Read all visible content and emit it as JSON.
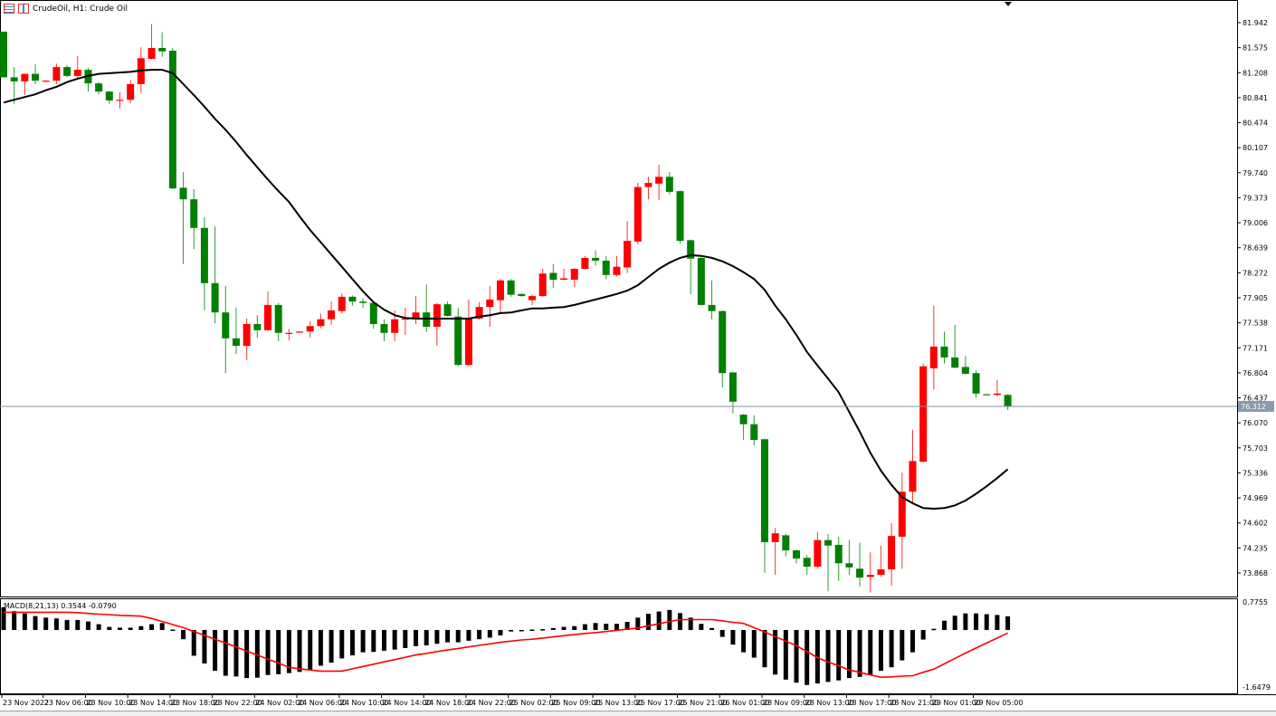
{
  "header": {
    "title": "CrudeOil, H1:  Crude Oil",
    "icons": [
      "chart-list-icon",
      "chart-window-icon"
    ]
  },
  "chart_data": [
    {
      "type": "candlestick",
      "symbol": "CrudeOil",
      "timeframe": "H1",
      "colors": {
        "up": "#ff0000",
        "down": "#008000",
        "ma": "#000000"
      },
      "ylim": [
        73.7,
        82.1
      ],
      "yticks": [
        "81.942",
        "81.575",
        "81.208",
        "80.841",
        "80.474",
        "80.107",
        "79.740",
        "79.373",
        "79.006",
        "78.639",
        "78.272",
        "77.905",
        "77.538",
        "77.171",
        "76.804",
        "76.437",
        "76.070",
        "75.703",
        "75.336",
        "74.969",
        "74.602",
        "74.235",
        "73.868"
      ],
      "current_price": "76.312",
      "xticks": [
        "23 Nov 2022",
        "23 Nov 06:00",
        "23 Nov 10:00",
        "23 Nov 14:00",
        "23 Nov 18:00",
        "23 Nov 22:00",
        "24 Nov 02:00",
        "24 Nov 06:00",
        "24 Nov 10:00",
        "24 Nov 14:00",
        "24 Nov 18:00",
        "24 Nov 22:00",
        "25 Nov 02:00",
        "25 Nov 09:00",
        "25 Nov 13:00",
        "25 Nov 17:00",
        "25 Nov 21:00",
        "26 Nov 01:00",
        "28 Nov 09:00",
        "28 Nov 13:00",
        "28 Nov 17:00",
        "28 Nov 21:00",
        "29 Nov 01:00",
        "29 Nov 05:00"
      ],
      "ohlc": [
        [
          81.81,
          81.81,
          81.14,
          81.14
        ],
        [
          81.14,
          81.29,
          80.75,
          81.08
        ],
        [
          81.08,
          81.19,
          80.88,
          81.19
        ],
        [
          81.19,
          81.33,
          81.04,
          81.09
        ],
        [
          81.09,
          81.1,
          81.08,
          81.09
        ],
        [
          81.09,
          81.34,
          81.04,
          81.29
        ],
        [
          81.29,
          81.32,
          81.14,
          81.16
        ],
        [
          81.16,
          81.45,
          81.12,
          81.25
        ],
        [
          81.25,
          81.28,
          80.93,
          81.05
        ],
        [
          81.05,
          81.07,
          80.89,
          80.93
        ],
        [
          80.93,
          80.94,
          80.75,
          80.8
        ],
        [
          80.8,
          80.92,
          80.68,
          80.81
        ],
        [
          80.81,
          81.1,
          80.76,
          81.04
        ],
        [
          81.04,
          81.58,
          80.91,
          81.42
        ],
        [
          81.41,
          81.92,
          81.4,
          81.57
        ],
        [
          81.57,
          81.8,
          81.44,
          81.52
        ],
        [
          81.53,
          81.57,
          79.5,
          79.51
        ],
        [
          79.52,
          79.75,
          78.4,
          79.35
        ],
        [
          79.35,
          79.5,
          78.62,
          78.93
        ],
        [
          78.93,
          79.09,
          77.72,
          78.12
        ],
        [
          78.12,
          78.95,
          77.53,
          77.69
        ],
        [
          77.69,
          78.08,
          76.8,
          77.31
        ],
        [
          77.31,
          77.76,
          77.08,
          77.2
        ],
        [
          77.2,
          77.6,
          76.99,
          77.52
        ],
        [
          77.52,
          77.65,
          77.32,
          77.43
        ],
        [
          77.43,
          78.0,
          77.42,
          77.8
        ],
        [
          77.8,
          77.83,
          77.27,
          77.39
        ],
        [
          77.38,
          77.45,
          77.28,
          77.39
        ],
        [
          77.4,
          77.41,
          77.39,
          77.41
        ],
        [
          77.41,
          77.56,
          77.32,
          77.49
        ],
        [
          77.49,
          77.67,
          77.46,
          77.59
        ],
        [
          77.59,
          77.85,
          77.51,
          77.72
        ],
        [
          77.71,
          77.97,
          77.68,
          77.92
        ],
        [
          77.92,
          77.94,
          77.79,
          77.85
        ],
        [
          77.85,
          77.9,
          77.76,
          77.83
        ],
        [
          77.83,
          77.86,
          77.45,
          77.52
        ],
        [
          77.52,
          77.59,
          77.27,
          77.39
        ],
        [
          77.39,
          77.72,
          77.27,
          77.59
        ],
        [
          77.59,
          77.76,
          77.36,
          77.6
        ],
        [
          77.6,
          77.93,
          77.52,
          77.69
        ],
        [
          77.69,
          78.1,
          77.4,
          77.48
        ],
        [
          77.48,
          77.83,
          77.2,
          77.81
        ],
        [
          77.81,
          77.85,
          77.63,
          77.64
        ],
        [
          77.63,
          77.76,
          76.9,
          76.92
        ],
        [
          76.92,
          77.88,
          76.9,
          77.6
        ],
        [
          77.6,
          77.84,
          77.58,
          77.77
        ],
        [
          77.77,
          78.08,
          77.48,
          77.88
        ],
        [
          77.87,
          78.18,
          77.67,
          78.16
        ],
        [
          78.16,
          78.18,
          77.92,
          77.95
        ],
        [
          77.96,
          77.97,
          77.92,
          77.93
        ],
        [
          77.87,
          77.95,
          77.8,
          77.93
        ],
        [
          77.93,
          78.33,
          77.92,
          78.26
        ],
        [
          78.27,
          78.4,
          78.05,
          78.17
        ],
        [
          78.17,
          78.33,
          78.16,
          78.19
        ],
        [
          78.17,
          78.34,
          78.06,
          78.33
        ],
        [
          78.33,
          78.52,
          78.32,
          78.49
        ],
        [
          78.49,
          78.6,
          78.38,
          78.45
        ],
        [
          78.45,
          78.52,
          78.18,
          78.24
        ],
        [
          78.24,
          78.52,
          78.22,
          78.36
        ],
        [
          78.35,
          79.03,
          78.27,
          78.74
        ],
        [
          78.73,
          79.59,
          78.69,
          79.53
        ],
        [
          79.53,
          79.68,
          79.35,
          79.59
        ],
        [
          79.58,
          79.86,
          79.34,
          79.68
        ],
        [
          79.68,
          79.75,
          79.42,
          79.46
        ],
        [
          79.47,
          79.48,
          78.7,
          78.74
        ],
        [
          78.75,
          78.76,
          77.96,
          78.48
        ],
        [
          78.49,
          78.5,
          77.79,
          77.8
        ],
        [
          77.8,
          78.16,
          77.59,
          77.71
        ],
        [
          77.71,
          77.72,
          76.59,
          76.8
        ],
        [
          76.81,
          76.82,
          76.21,
          76.38
        ],
        [
          76.19,
          76.2,
          75.82,
          76.05
        ],
        [
          76.05,
          76.18,
          75.74,
          75.82
        ],
        [
          75.83,
          75.84,
          73.87,
          74.32
        ],
        [
          74.32,
          74.53,
          73.84,
          74.45
        ],
        [
          74.42,
          74.44,
          74.11,
          74.2
        ],
        [
          74.2,
          74.21,
          74.01,
          74.08
        ],
        [
          74.09,
          74.13,
          73.84,
          73.96
        ],
        [
          73.96,
          74.47,
          73.93,
          74.35
        ],
        [
          74.35,
          74.44,
          73.6,
          74.27
        ],
        [
          74.28,
          74.4,
          73.75,
          74.01
        ],
        [
          74.01,
          74.35,
          73.84,
          73.95
        ],
        [
          73.93,
          74.31,
          73.67,
          73.8
        ],
        [
          73.81,
          74.17,
          73.58,
          73.84
        ],
        [
          73.84,
          74.27,
          73.81,
          73.92
        ],
        [
          73.92,
          74.6,
          73.68,
          74.41
        ],
        [
          74.4,
          75.34,
          73.93,
          75.06
        ],
        [
          75.06,
          75.97,
          74.9,
          75.51
        ],
        [
          75.5,
          76.94,
          75.49,
          76.9
        ],
        [
          76.87,
          77.79,
          76.56,
          77.19
        ],
        [
          77.19,
          77.41,
          76.94,
          77.03
        ],
        [
          77.03,
          77.51,
          76.87,
          76.88
        ],
        [
          76.89,
          77.05,
          76.78,
          76.79
        ],
        [
          76.8,
          76.84,
          76.44,
          76.5
        ],
        [
          76.49,
          76.5,
          76.48,
          76.48
        ],
        [
          76.48,
          76.7,
          76.46,
          76.5
        ],
        [
          76.48,
          76.49,
          76.26,
          76.312
        ]
      ],
      "moving_average": [
        80.77,
        80.81,
        80.85,
        80.89,
        80.95,
        81.0,
        81.07,
        81.12,
        81.16,
        81.19,
        81.2,
        81.21,
        81.22,
        81.24,
        81.25,
        81.25,
        81.2,
        81.04,
        80.88,
        80.71,
        80.53,
        80.37,
        80.19,
        80.0,
        79.82,
        79.64,
        79.47,
        79.31,
        79.1,
        78.9,
        78.72,
        78.54,
        78.36,
        78.18,
        78.0,
        77.84,
        77.73,
        77.65,
        77.61,
        77.6,
        77.6,
        77.6,
        77.6,
        77.6,
        77.6,
        77.63,
        77.65,
        77.68,
        77.69,
        77.72,
        77.75,
        77.75,
        77.76,
        77.77,
        77.8,
        77.84,
        77.88,
        77.92,
        77.96,
        78.01,
        78.09,
        78.21,
        78.33,
        78.42,
        78.49,
        78.53,
        78.52,
        78.49,
        78.44,
        78.37,
        78.28,
        78.18,
        78.02,
        77.79,
        77.59,
        77.36,
        77.11,
        76.91,
        76.72,
        76.52,
        76.23,
        75.94,
        75.63,
        75.37,
        75.16,
        74.98,
        74.89,
        74.82,
        74.81,
        74.82,
        74.86,
        74.93,
        75.03,
        75.14,
        75.26,
        75.39
      ]
    },
    {
      "type": "bar+line",
      "label": "MACD(8,21,13) 0.3544 -0.0790",
      "ylim": [
        -1.6479,
        0.7755
      ],
      "yticks": [
        "0.7755",
        "-1.6479"
      ],
      "colors": {
        "histogram": "#000000",
        "signal": "#ff0000"
      },
      "histogram": [
        0.59,
        0.49,
        0.43,
        0.36,
        0.32,
        0.3,
        0.26,
        0.26,
        0.22,
        0.15,
        0.08,
        0.06,
        0.06,
        0.1,
        0.15,
        0.18,
        0.01,
        -0.24,
        -0.67,
        -0.87,
        -1.06,
        -1.19,
        -1.21,
        -1.25,
        -1.24,
        -1.17,
        -1.15,
        -1.12,
        -1.09,
        -1.03,
        -0.93,
        -0.85,
        -0.74,
        -0.66,
        -0.58,
        -0.57,
        -0.54,
        -0.51,
        -0.47,
        -0.42,
        -0.4,
        -0.36,
        -0.32,
        -0.32,
        -0.28,
        -0.24,
        -0.2,
        -0.14,
        -0.04,
        -0.02,
        0.01,
        0.02,
        0.05,
        0.08,
        0.1,
        0.15,
        0.18,
        0.16,
        0.16,
        0.21,
        0.32,
        0.42,
        0.48,
        0.52,
        0.44,
        0.32,
        0.16,
        0.05,
        -0.18,
        -0.38,
        -0.58,
        -0.72,
        -0.97,
        -1.16,
        -1.29,
        -1.37,
        -1.43,
        -1.39,
        -1.35,
        -1.31,
        -1.25,
        -1.22,
        -1.16,
        -1.06,
        -0.97,
        -0.79,
        -0.58,
        -0.25,
        0.03,
        0.24,
        0.37,
        0.43,
        0.43,
        0.41,
        0.39,
        0.3544
      ],
      "signal": [
        0.46,
        0.46,
        0.46,
        0.46,
        0.46,
        0.46,
        0.46,
        0.45,
        0.43,
        0.41,
        0.4,
        0.38,
        0.37,
        0.36,
        0.3,
        0.22,
        0.14,
        0.06,
        -0.04,
        -0.14,
        -0.24,
        -0.34,
        -0.44,
        -0.55,
        -0.65,
        -0.76,
        -0.86,
        -0.97,
        -1.01,
        -1.04,
        -1.07,
        -1.07,
        -1.07,
        -1.01,
        -0.95,
        -0.89,
        -0.83,
        -0.77,
        -0.71,
        -0.65,
        -0.61,
        -0.56,
        -0.52,
        -0.48,
        -0.44,
        -0.4,
        -0.36,
        -0.32,
        -0.29,
        -0.26,
        -0.24,
        -0.21,
        -0.18,
        -0.15,
        -0.12,
        -0.09,
        -0.07,
        -0.04,
        -0.01,
        0.02,
        0.05,
        0.11,
        0.16,
        0.22,
        0.27,
        0.27,
        0.27,
        0.27,
        0.24,
        0.2,
        0.17,
        0.06,
        -0.05,
        -0.17,
        -0.29,
        -0.41,
        -0.56,
        -0.72,
        -0.83,
        -0.93,
        -1.04,
        -1.1,
        -1.17,
        -1.23,
        -1.22,
        -1.2,
        -1.19,
        -1.1,
        -1.02,
        -0.88,
        -0.74,
        -0.6,
        -0.47,
        -0.34,
        -0.21,
        -0.079
      ]
    }
  ]
}
